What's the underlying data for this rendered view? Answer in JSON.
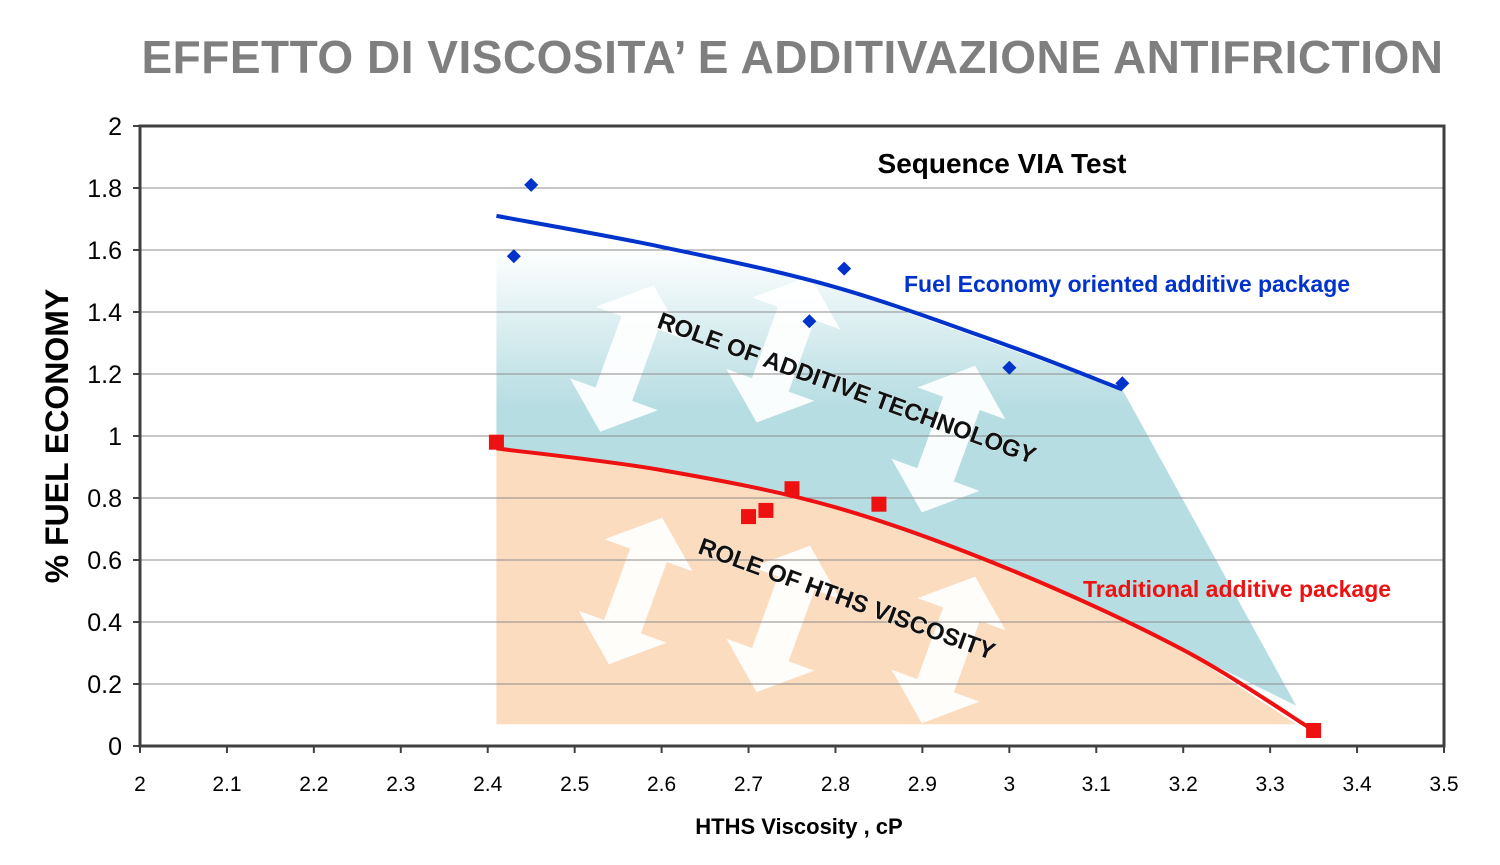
{
  "page": {
    "title": "EFFETTO DI VISCOSITA’ E ADDITIVAZIONE ANTIFRICTION"
  },
  "chart_data": {
    "type": "scatter",
    "title": "Sequence VIA Test",
    "xlabel": "HTHS Viscosity , cP",
    "ylabel": "% FUEL ECONOMY",
    "xlim": [
      2,
      3.5
    ],
    "ylim": [
      0,
      2
    ],
    "x_ticks": [
      "2",
      "2.1",
      "2.2",
      "2.3",
      "2.4",
      "2.5",
      "2.6",
      "2.7",
      "2.8",
      "2.9",
      "3",
      "3.1",
      "3.2",
      "3.3",
      "3.4",
      "3.5"
    ],
    "y_ticks": [
      "0",
      "0.2",
      "0.4",
      "0.6",
      "0.8",
      "1",
      "1.2",
      "1.4",
      "1.6",
      "1.8",
      "2"
    ],
    "grid": true,
    "series": [
      {
        "name": "Fuel Economy oriented additive package",
        "color": "#0033cc",
        "marker": "diamond",
        "points": [
          [
            2.43,
            1.58
          ],
          [
            2.45,
            1.81
          ],
          [
            2.77,
            1.37
          ],
          [
            2.81,
            1.54
          ],
          [
            3.0,
            1.22
          ],
          [
            3.13,
            1.17
          ]
        ],
        "trend": [
          [
            2.41,
            1.71
          ],
          [
            2.6,
            1.61
          ],
          [
            2.8,
            1.48
          ],
          [
            3.0,
            1.29
          ],
          [
            3.13,
            1.15
          ]
        ]
      },
      {
        "name": "Traditional additive package",
        "color": "#ee1111",
        "marker": "square",
        "points": [
          [
            2.41,
            0.98
          ],
          [
            2.7,
            0.74
          ],
          [
            2.72,
            0.76
          ],
          [
            2.75,
            0.83
          ],
          [
            2.85,
            0.78
          ],
          [
            3.35,
            0.05
          ]
        ],
        "trend": [
          [
            2.41,
            0.96
          ],
          [
            2.6,
            0.89
          ],
          [
            2.8,
            0.77
          ],
          [
            3.0,
            0.57
          ],
          [
            3.2,
            0.31
          ],
          [
            3.35,
            0.05
          ]
        ]
      }
    ],
    "annotations": [
      {
        "text": "ROLE OF ADDITIVE TECHNOLOGY",
        "x": 2.81,
        "y": 1.13,
        "angle": 20
      },
      {
        "text": "ROLE OF HTHS VISCOSITY",
        "x": 2.81,
        "y": 0.45,
        "angle": 20
      }
    ],
    "regions": [
      {
        "name": "additive-technology",
        "color": "#b6dde2",
        "polygon": [
          [
            2.41,
            1.6
          ],
          [
            2.41,
            0.96
          ],
          [
            2.6,
            0.89
          ],
          [
            2.8,
            0.77
          ],
          [
            3.0,
            0.57
          ],
          [
            3.2,
            0.31
          ],
          [
            3.33,
            0.13
          ],
          [
            3.13,
            1.15
          ],
          [
            2.8,
            1.48
          ],
          [
            2.6,
            1.61
          ]
        ]
      },
      {
        "name": "hths-viscosity",
        "color": "#fbdcbf",
        "polygon": [
          [
            2.41,
            0.96
          ],
          [
            2.6,
            0.89
          ],
          [
            2.8,
            0.77
          ],
          [
            3.0,
            0.57
          ],
          [
            3.2,
            0.31
          ],
          [
            3.33,
            0.07
          ],
          [
            2.41,
            0.07
          ]
        ]
      }
    ],
    "arrows": [
      {
        "x": 2.56,
        "y": 1.25
      },
      {
        "x": 2.74,
        "y": 1.28
      },
      {
        "x": 2.93,
        "y": 0.99
      },
      {
        "x": 2.57,
        "y": 0.5
      },
      {
        "x": 2.74,
        "y": 0.41
      },
      {
        "x": 2.93,
        "y": 0.31
      }
    ]
  }
}
